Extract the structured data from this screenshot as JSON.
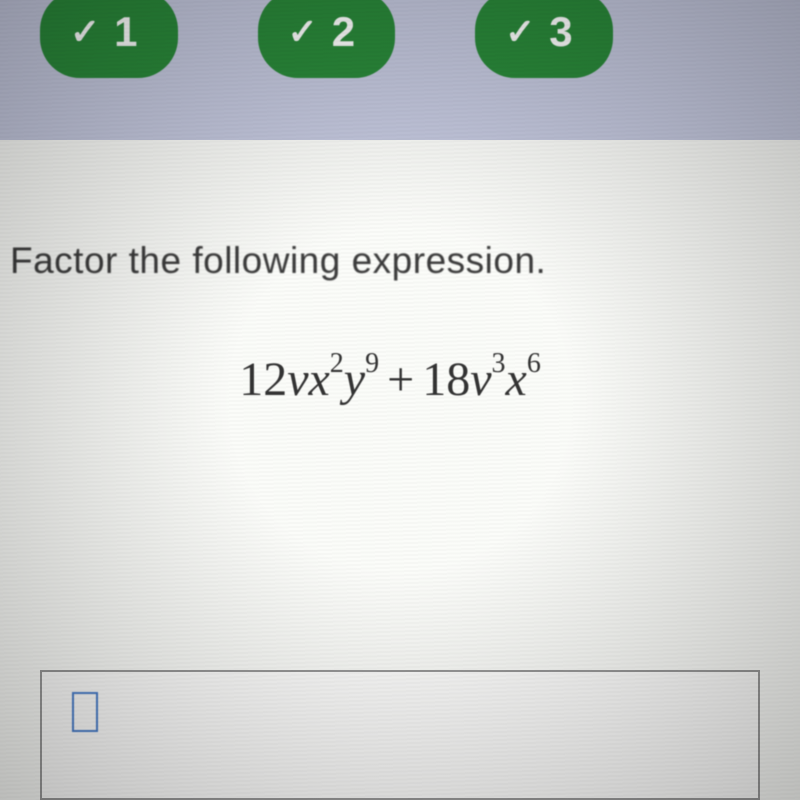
{
  "nav": {
    "pills": [
      {
        "number": "1",
        "completed": true
      },
      {
        "number": "2",
        "completed": true
      },
      {
        "number": "3",
        "completed": true
      }
    ],
    "pill_bg": "#2a8a3a",
    "bar_bg": "#c5c9df"
  },
  "content": {
    "prompt": "Factor the following expression.",
    "bg": "#fbfcf9",
    "expression": {
      "term1_coeff": "12",
      "term1_vars": "vx",
      "term1_exp1": "2",
      "term1_var2": "y",
      "term1_exp2": "9",
      "operator": "+",
      "term2_coeff": "18",
      "term2_var1": "v",
      "term2_exp1": "3",
      "term2_var2": "x",
      "term2_exp2": "6"
    }
  },
  "answer": {
    "placeholder_border": "#4a7fcc"
  }
}
